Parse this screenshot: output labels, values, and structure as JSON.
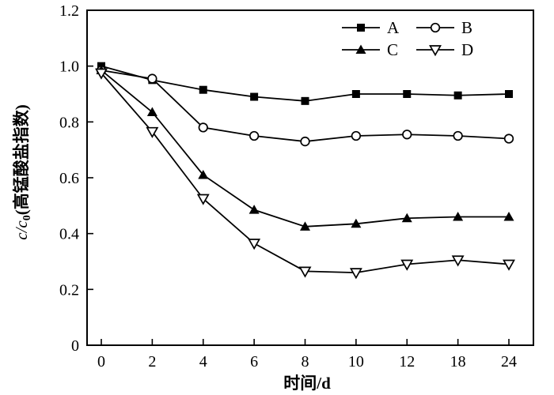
{
  "figure": {
    "background": "#ffffff",
    "frame_color": "#000000",
    "line_color": "#000000"
  },
  "chart_data": {
    "type": "line",
    "title": "",
    "xlabel": "时间/d",
    "ylabel": "c/c0(高锰酸盐指数)",
    "ylabel_parts": {
      "italic": "c/c",
      "sub": "0",
      "rest": "(高锰酸盐指数)"
    },
    "x_tick_labels": [
      "0",
      "2",
      "4",
      "6",
      "8",
      "10",
      "12",
      "18",
      "24"
    ],
    "y_tick_labels": [
      "1.2",
      "1.0",
      "0.8",
      "0.6",
      "0.4",
      "0.2",
      "0"
    ],
    "ylim": [
      0,
      1.2
    ],
    "y_tick_step": 0.2,
    "grid": false,
    "legend_position": "inside top-center, 2 columns",
    "categories": [
      0,
      2,
      4,
      6,
      8,
      10,
      12,
      18,
      24
    ],
    "series": [
      {
        "name": "A",
        "marker": "square-filled",
        "values": [
          1.0,
          0.95,
          0.915,
          0.89,
          0.875,
          0.9,
          0.9,
          0.895,
          0.9
        ]
      },
      {
        "name": "B",
        "marker": "circle-open",
        "values": [
          0.985,
          0.955,
          0.78,
          0.75,
          0.73,
          0.75,
          0.755,
          0.75,
          0.74
        ]
      },
      {
        "name": "C",
        "marker": "triangle-up-filled",
        "values": [
          0.985,
          0.835,
          0.61,
          0.485,
          0.425,
          0.435,
          0.455,
          0.46,
          0.46
        ]
      },
      {
        "name": "D",
        "marker": "triangle-down-open",
        "values": [
          0.975,
          0.765,
          0.525,
          0.365,
          0.265,
          0.26,
          0.29,
          0.305,
          0.29
        ]
      }
    ]
  }
}
